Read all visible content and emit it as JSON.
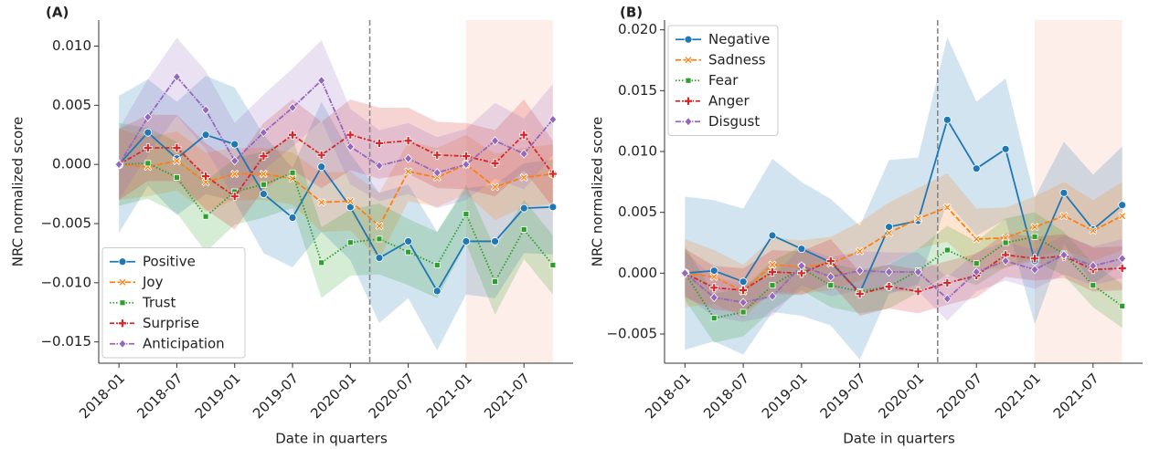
{
  "chart_data": [
    {
      "type": "line",
      "panel_label": "(A)",
      "xlabel": "Date in quarters",
      "ylabel": "NRC normalized score",
      "categories": [
        "2018-01",
        null,
        "2018-07",
        null,
        "2019-01",
        null,
        "2019-07",
        null,
        "2020-01",
        null,
        "2020-07",
        null,
        "2021-01",
        null,
        "2021-07",
        null
      ],
      "ylim": [
        -0.0168,
        0.0122
      ],
      "yticks": [
        {
          "value": -0.015,
          "label": "−0.015"
        },
        {
          "value": -0.01,
          "label": "−0.010"
        },
        {
          "value": -0.005,
          "label": "−0.005"
        },
        {
          "value": 0,
          "label": "0.000"
        },
        {
          "value": 0.005,
          "label": "0.005"
        },
        {
          "value": 0.01,
          "label": "0.010"
        }
      ],
      "legend": "lower left",
      "vline": 8.67,
      "span": [
        12,
        15
      ],
      "span_color": "#fde3da",
      "series": [
        {
          "name": "Positive",
          "color": "#1f77b4",
          "dash": "solid",
          "marker": "circle",
          "values": [
            0,
            0.0027,
            0.0005,
            0.0025,
            0.0017,
            -0.0025,
            -0.0045,
            -0.0002,
            -0.0036,
            -0.0079,
            -0.0065,
            -0.0107,
            -0.0065,
            -0.0065,
            -0.0037,
            -0.0036
          ],
          "ci": [
            0.0058,
            0.0045,
            0.0048,
            0.005,
            0.0048,
            0.005,
            0.0042,
            0.0055,
            0.0045,
            0.0055,
            0.0048,
            0.005,
            0.0045,
            0.0048,
            0.0038,
            0.004
          ]
        },
        {
          "name": "Joy",
          "color": "#ff7f0e",
          "dash": "dashed",
          "marker": "x",
          "values": [
            0,
            -0.0002,
            0.0003,
            -0.0015,
            -0.0008,
            -0.0008,
            -0.0012,
            -0.0032,
            -0.0031,
            -0.0052,
            -0.0006,
            -0.0011,
            0,
            -0.0019,
            -0.0011,
            -0.0008
          ],
          "ci": [
            0.003,
            0.0025,
            0.0025,
            0.0025,
            0.0022,
            0.0022,
            0.0022,
            0.0025,
            0.0025,
            0.0028,
            0.0025,
            0.0025,
            0.0025,
            0.0028,
            0.0025,
            0.0025
          ]
        },
        {
          "name": "Trust",
          "color": "#2ca02c",
          "dash": "dotted",
          "marker": "square",
          "values": [
            0,
            0.0001,
            -0.0011,
            -0.0044,
            -0.0023,
            -0.0017,
            -0.0007,
            -0.0083,
            -0.0066,
            -0.0063,
            -0.0074,
            -0.0085,
            -0.0042,
            -0.0099,
            -0.0055,
            -0.0085
          ],
          "ci": [
            0.0035,
            0.003,
            0.003,
            0.003,
            0.0028,
            0.0028,
            0.003,
            0.003,
            0.0028,
            0.003,
            0.0028,
            0.0028,
            0.0025,
            0.0028,
            0.0025,
            0.0025
          ]
        },
        {
          "name": "Surprise",
          "color": "#d62728",
          "dash": "dashdot",
          "marker": "plus",
          "values": [
            0,
            0.0014,
            0.0014,
            -0.001,
            -0.0027,
            0.0007,
            0.0025,
            0.0008,
            0.0025,
            0.0018,
            0.002,
            0.0008,
            0.0007,
            0.0001,
            0.0025,
            -0.0008
          ],
          "ci": [
            0.003,
            0.0028,
            0.0028,
            0.0028,
            0.0028,
            0.0028,
            0.003,
            0.0028,
            0.003,
            0.003,
            0.0028,
            0.0028,
            0.0028,
            0.0028,
            0.003,
            0.0028
          ]
        },
        {
          "name": "Anticipation",
          "color": "#9467bd",
          "dash": "dashdotdot",
          "marker": "diamond",
          "values": [
            0,
            0.004,
            0.0074,
            0.0046,
            0.0003,
            0.0027,
            0.0048,
            0.0071,
            0.0015,
            -0.0001,
            0.0005,
            -0.0007,
            0,
            0.002,
            0.0009,
            0.0038
          ],
          "ci": [
            0.003,
            0.0032,
            0.0033,
            0.0033,
            0.0032,
            0.0032,
            0.0033,
            0.0034,
            0.0032,
            0.003,
            0.003,
            0.003,
            0.003,
            0.0032,
            0.003,
            0.003
          ]
        }
      ]
    },
    {
      "type": "line",
      "panel_label": "(B)",
      "xlabel": "Date in quarters",
      "ylabel": "NRC normalized score",
      "categories": [
        "2018-01",
        null,
        "2018-07",
        null,
        "2019-01",
        null,
        "2019-07",
        null,
        "2020-01",
        null,
        "2020-07",
        null,
        "2021-01",
        null,
        "2021-07",
        null
      ],
      "ylim": [
        -0.0074,
        0.0208
      ],
      "yticks": [
        {
          "value": -0.005,
          "label": "−0.005"
        },
        {
          "value": 0,
          "label": "0.000"
        },
        {
          "value": 0.005,
          "label": "0.005"
        },
        {
          "value": 0.01,
          "label": "0.010"
        },
        {
          "value": 0.015,
          "label": "0.015"
        },
        {
          "value": 0.02,
          "label": "0.020"
        }
      ],
      "legend": "upper left",
      "vline": 8.67,
      "span": [
        12,
        15
      ],
      "span_color": "#fde3da",
      "series": [
        {
          "name": "Negative",
          "color": "#1f77b4",
          "dash": "solid",
          "marker": "circle",
          "values": [
            0,
            0.0002,
            -0.0007,
            0.0031,
            0.002,
            0.0009,
            -0.0016,
            0.0038,
            0.0043,
            0.0126,
            0.0086,
            0.0102,
            0.001,
            0.0066,
            0.0036,
            0.0056
          ],
          "ci": [
            0.0063,
            0.0058,
            0.006,
            0.0063,
            0.0055,
            0.0052,
            0.0055,
            0.0055,
            0.0052,
            0.0068,
            0.0055,
            0.0058,
            0.0052,
            0.0042,
            0.0045,
            0.0048
          ]
        },
        {
          "name": "Sadness",
          "color": "#ff7f0e",
          "dash": "dashed",
          "marker": "x",
          "values": [
            0,
            -0.0003,
            -0.0015,
            0.0007,
            0.0005,
            0.0008,
            0.0018,
            0.0033,
            0.0045,
            0.0054,
            0.0028,
            0.0029,
            0.0038,
            0.0047,
            0.0035,
            0.0047
          ],
          "ci": [
            0.0028,
            0.0022,
            0.0022,
            0.0022,
            0.0022,
            0.0022,
            0.0024,
            0.0025,
            0.0025,
            0.0028,
            0.0025,
            0.0025,
            0.0025,
            0.0028,
            0.0025,
            0.0028
          ]
        },
        {
          "name": "Fear",
          "color": "#2ca02c",
          "dash": "dotted",
          "marker": "square",
          "values": [
            0,
            -0.0037,
            -0.0032,
            -0.001,
            0.0004,
            -0.001,
            -0.0015,
            -0.0011,
            0.0002,
            0.0019,
            0.0008,
            0.0025,
            0.003,
            0.0016,
            -0.001,
            -0.0027
          ],
          "ci": [
            0.0022,
            0.002,
            0.002,
            0.002,
            0.0018,
            0.0018,
            0.0018,
            0.0018,
            0.0018,
            0.002,
            0.0018,
            0.002,
            0.002,
            0.0018,
            0.0018,
            0.0018
          ]
        },
        {
          "name": "Anger",
          "color": "#d62728",
          "dash": "dashdot",
          "marker": "plus",
          "values": [
            0,
            -0.0012,
            -0.0014,
            0.0001,
            0,
            0.001,
            -0.0017,
            -0.0011,
            -0.0015,
            -0.0008,
            -0.0002,
            0.0015,
            0.0012,
            0.0014,
            0.0003,
            0.0004
          ],
          "ci": [
            0.002,
            0.0018,
            0.0018,
            0.0018,
            0.0018,
            0.0018,
            0.0018,
            0.0018,
            0.0018,
            0.0018,
            0.0018,
            0.0018,
            0.0018,
            0.0018,
            0.0018,
            0.0018
          ]
        },
        {
          "name": "Disgust",
          "color": "#9467bd",
          "dash": "dashdotdot",
          "marker": "diamond",
          "values": [
            0,
            -0.002,
            -0.0024,
            -0.0019,
            0.0006,
            -0.0003,
            0.0002,
            0.0001,
            0.0001,
            -0.0021,
            0.0001,
            0.001,
            0.0003,
            0.0015,
            0.0006,
            0.0012
          ],
          "ci": [
            0.0018,
            0.0016,
            0.0016,
            0.0016,
            0.0016,
            0.0016,
            0.0016,
            0.0016,
            0.0016,
            0.0018,
            0.0016,
            0.0016,
            0.0016,
            0.0016,
            0.0016,
            0.0016
          ]
        }
      ]
    }
  ]
}
